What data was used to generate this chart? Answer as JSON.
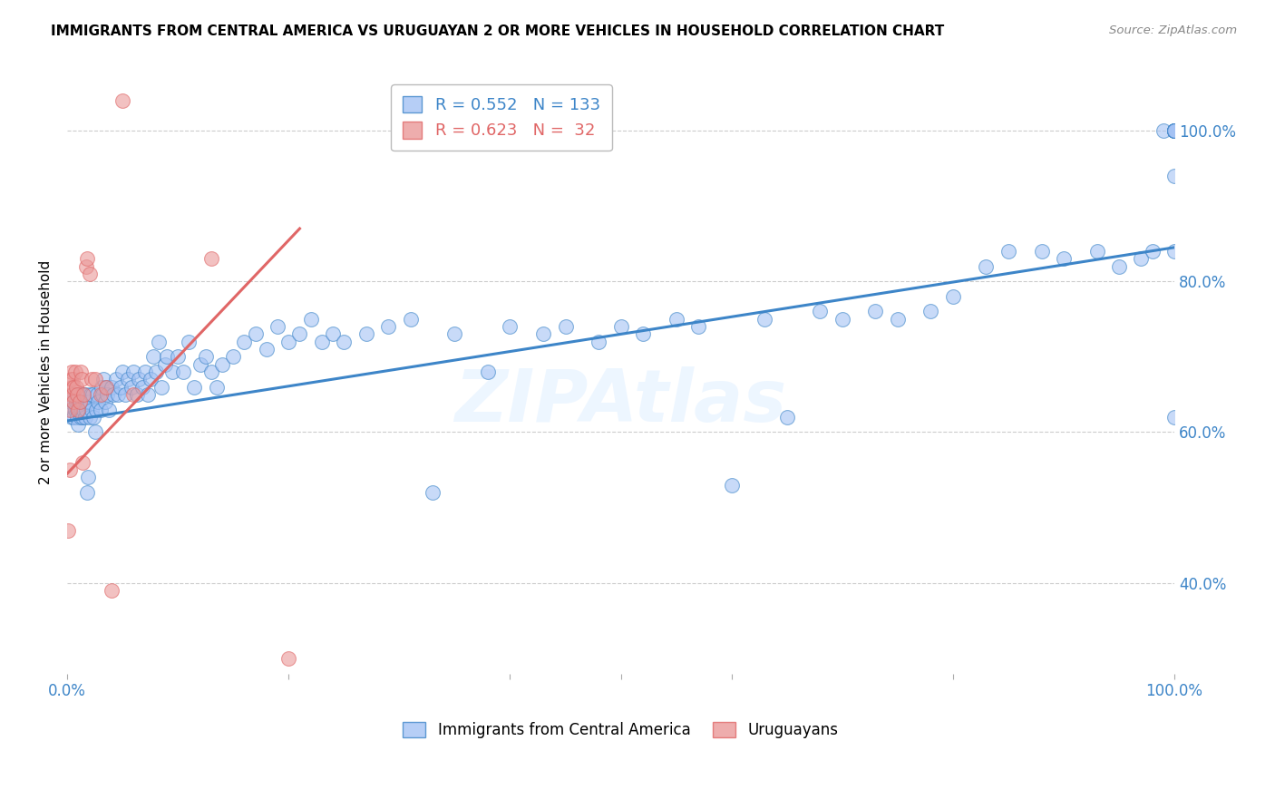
{
  "title": "IMMIGRANTS FROM CENTRAL AMERICA VS URUGUAYAN 2 OR MORE VEHICLES IN HOUSEHOLD CORRELATION CHART",
  "source": "Source: ZipAtlas.com",
  "ylabel": "2 or more Vehicles in Household",
  "xmin": 0.0,
  "xmax": 1.0,
  "ymin": 0.28,
  "ymax": 1.08,
  "y_ticks": [
    0.4,
    0.6,
    0.8,
    1.0
  ],
  "y_tick_labels": [
    "40.0%",
    "60.0%",
    "80.0%",
    "100.0%"
  ],
  "blue_R": 0.552,
  "blue_N": 133,
  "pink_R": 0.623,
  "pink_N": 32,
  "legend_label_blue": "Immigrants from Central America",
  "legend_label_pink": "Uruguayans",
  "blue_color": "#a4c2f4",
  "pink_color": "#ea9999",
  "blue_line_color": "#3d85c8",
  "pink_line_color": "#e06666",
  "watermark": "ZIPAtlas",
  "blue_scatter_x": [
    0.003,
    0.004,
    0.005,
    0.005,
    0.006,
    0.006,
    0.007,
    0.008,
    0.008,
    0.009,
    0.009,
    0.01,
    0.01,
    0.011,
    0.011,
    0.012,
    0.012,
    0.013,
    0.013,
    0.014,
    0.014,
    0.015,
    0.015,
    0.016,
    0.016,
    0.017,
    0.017,
    0.018,
    0.018,
    0.019,
    0.02,
    0.02,
    0.021,
    0.022,
    0.023,
    0.024,
    0.025,
    0.026,
    0.027,
    0.028,
    0.03,
    0.031,
    0.032,
    0.033,
    0.034,
    0.035,
    0.036,
    0.038,
    0.04,
    0.042,
    0.044,
    0.046,
    0.048,
    0.05,
    0.052,
    0.055,
    0.058,
    0.06,
    0.063,
    0.065,
    0.068,
    0.07,
    0.073,
    0.075,
    0.078,
    0.08,
    0.083,
    0.085,
    0.088,
    0.09,
    0.095,
    0.1,
    0.105,
    0.11,
    0.115,
    0.12,
    0.125,
    0.13,
    0.135,
    0.14,
    0.15,
    0.16,
    0.17,
    0.18,
    0.19,
    0.2,
    0.21,
    0.22,
    0.23,
    0.24,
    0.25,
    0.27,
    0.29,
    0.31,
    0.33,
    0.35,
    0.38,
    0.4,
    0.43,
    0.45,
    0.48,
    0.5,
    0.52,
    0.55,
    0.57,
    0.6,
    0.63,
    0.65,
    0.68,
    0.7,
    0.73,
    0.75,
    0.78,
    0.8,
    0.83,
    0.85,
    0.88,
    0.9,
    0.93,
    0.95,
    0.97,
    0.98,
    0.99,
    1.0,
    1.0,
    1.0,
    1.0,
    1.0,
    1.0,
    1.0,
    1.0,
    1.0,
    1.0
  ],
  "blue_scatter_y": [
    0.64,
    0.62,
    0.65,
    0.63,
    0.64,
    0.62,
    0.63,
    0.65,
    0.64,
    0.63,
    0.62,
    0.64,
    0.61,
    0.65,
    0.63,
    0.62,
    0.64,
    0.63,
    0.65,
    0.62,
    0.64,
    0.65,
    0.63,
    0.64,
    0.62,
    0.63,
    0.65,
    0.52,
    0.64,
    0.54,
    0.62,
    0.64,
    0.65,
    0.63,
    0.65,
    0.62,
    0.6,
    0.63,
    0.65,
    0.64,
    0.63,
    0.66,
    0.65,
    0.67,
    0.64,
    0.66,
    0.65,
    0.63,
    0.66,
    0.65,
    0.67,
    0.65,
    0.66,
    0.68,
    0.65,
    0.67,
    0.66,
    0.68,
    0.65,
    0.67,
    0.66,
    0.68,
    0.65,
    0.67,
    0.7,
    0.68,
    0.72,
    0.66,
    0.69,
    0.7,
    0.68,
    0.7,
    0.68,
    0.72,
    0.66,
    0.69,
    0.7,
    0.68,
    0.66,
    0.69,
    0.7,
    0.72,
    0.73,
    0.71,
    0.74,
    0.72,
    0.73,
    0.75,
    0.72,
    0.73,
    0.72,
    0.73,
    0.74,
    0.75,
    0.52,
    0.73,
    0.68,
    0.74,
    0.73,
    0.74,
    0.72,
    0.74,
    0.73,
    0.75,
    0.74,
    0.53,
    0.75,
    0.62,
    0.76,
    0.75,
    0.76,
    0.75,
    0.76,
    0.78,
    0.82,
    0.84,
    0.84,
    0.83,
    0.84,
    0.82,
    0.83,
    0.84,
    1.0,
    1.0,
    1.0,
    1.0,
    0.94,
    0.62,
    0.84,
    1.0,
    1.0,
    1.0,
    1.0
  ],
  "pink_scatter_x": [
    0.001,
    0.002,
    0.002,
    0.003,
    0.003,
    0.004,
    0.004,
    0.005,
    0.005,
    0.006,
    0.006,
    0.007,
    0.008,
    0.009,
    0.01,
    0.011,
    0.012,
    0.013,
    0.014,
    0.015,
    0.017,
    0.018,
    0.02,
    0.022,
    0.025,
    0.03,
    0.035,
    0.04,
    0.05,
    0.06,
    0.13,
    0.2
  ],
  "pink_scatter_y": [
    0.47,
    0.55,
    0.63,
    0.67,
    0.65,
    0.66,
    0.68,
    0.67,
    0.65,
    0.66,
    0.64,
    0.68,
    0.66,
    0.65,
    0.63,
    0.64,
    0.68,
    0.67,
    0.56,
    0.65,
    0.82,
    0.83,
    0.81,
    0.67,
    0.67,
    0.65,
    0.66,
    0.39,
    1.04,
    0.65,
    0.83,
    0.3
  ],
  "blue_line_x0": 0.0,
  "blue_line_x1": 1.0,
  "blue_line_y0": 0.615,
  "blue_line_y1": 0.845,
  "pink_line_x0": 0.0,
  "pink_line_x1": 0.21,
  "pink_line_y0": 0.545,
  "pink_line_y1": 0.87
}
